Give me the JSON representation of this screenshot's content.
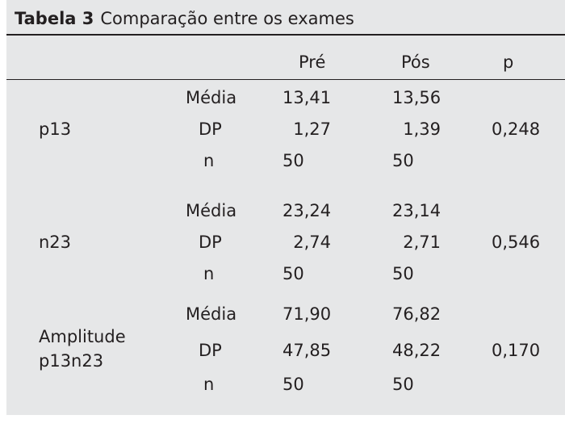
{
  "table": {
    "caption_number": "Tabela 3",
    "caption_text": "Comparação entre os exames",
    "headers": [
      "",
      "",
      "Pré",
      "Pós",
      "p"
    ],
    "groups": [
      {
        "variable": "p13",
        "p": "0,248",
        "rows": [
          {
            "stat": "Média",
            "pre": "13,41",
            "pos": "13,56"
          },
          {
            "stat": "DP",
            "pre": "1,27",
            "pos": "1,39"
          },
          {
            "stat": "n",
            "pre": "50",
            "pos": "50"
          }
        ]
      },
      {
        "variable": "n23",
        "p": "0,546",
        "rows": [
          {
            "stat": "Média",
            "pre": "23,24",
            "pos": "23,14"
          },
          {
            "stat": "DP",
            "pre": "2,74",
            "pos": "2,71"
          },
          {
            "stat": "n",
            "pre": "50",
            "pos": "50"
          }
        ]
      },
      {
        "variable_line1": "Amplitude",
        "variable_line2": "p13n23",
        "p": "0,170",
        "rows": [
          {
            "stat": "Média",
            "pre": "71,90",
            "pos": "76,82"
          },
          {
            "stat": "DP",
            "pre": "47,85",
            "pos": "48,22"
          },
          {
            "stat": "n",
            "pre": "50",
            "pos": "50"
          }
        ]
      }
    ]
  }
}
